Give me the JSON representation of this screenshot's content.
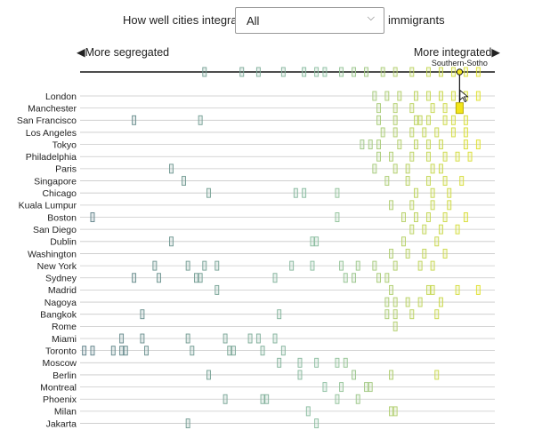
{
  "header": {
    "prefix": "How well cities integrate",
    "suffix": "immigrants",
    "select": {
      "selected": "All"
    }
  },
  "colors": {
    "segregated": "#5e7f88",
    "middle": "#8cc0a0",
    "integrated": "#e8e41e",
    "highlight": "#f2e51a"
  },
  "chart_data": {
    "type": "strip",
    "x_domain": [
      0,
      1
    ],
    "left_label": "More segregated",
    "right_label": "More integrated",
    "highlight": {
      "label": "Southern-Sotho",
      "city": "Manchester",
      "value": 0.915
    },
    "top_strip": [
      0.3,
      0.39,
      0.43,
      0.49,
      0.54,
      0.57,
      0.59,
      0.63,
      0.66,
      0.69,
      0.73,
      0.76,
      0.8,
      0.84,
      0.87,
      0.9,
      0.93,
      0.96
    ],
    "cities": [
      {
        "name": "London",
        "values": [
          0.71,
          0.74,
          0.77,
          0.81,
          0.84,
          0.87,
          0.9,
          0.93,
          0.96
        ]
      },
      {
        "name": "Manchester",
        "values": [
          0.72,
          0.76,
          0.8,
          0.85,
          0.88,
          0.915
        ]
      },
      {
        "name": "San Francisco",
        "values": [
          0.13,
          0.29,
          0.72,
          0.76,
          0.81,
          0.82,
          0.84,
          0.88,
          0.9,
          0.93
        ]
      },
      {
        "name": "Los Angeles",
        "values": [
          0.73,
          0.76,
          0.8,
          0.83,
          0.86,
          0.9,
          0.93
        ]
      },
      {
        "name": "Tokyo",
        "values": [
          0.68,
          0.7,
          0.72,
          0.77,
          0.81,
          0.84,
          0.87,
          0.93,
          0.96
        ]
      },
      {
        "name": "Philadelphia",
        "values": [
          0.72,
          0.75,
          0.8,
          0.84,
          0.88,
          0.91,
          0.94
        ]
      },
      {
        "name": "Paris",
        "values": [
          0.22,
          0.71,
          0.76,
          0.79,
          0.85,
          0.87
        ]
      },
      {
        "name": "Singapore",
        "values": [
          0.25,
          0.74,
          0.79,
          0.84,
          0.88,
          0.92
        ]
      },
      {
        "name": "Chicago",
        "values": [
          0.31,
          0.52,
          0.54,
          0.62,
          0.81,
          0.85,
          0.89
        ]
      },
      {
        "name": "Kuala Lumpur",
        "values": [
          0.75,
          0.8,
          0.85,
          0.89
        ]
      },
      {
        "name": "Boston",
        "values": [
          0.03,
          0.62,
          0.78,
          0.81,
          0.84,
          0.88,
          0.93
        ]
      },
      {
        "name": "San Diego",
        "values": [
          0.8,
          0.83,
          0.87,
          0.91
        ]
      },
      {
        "name": "Dublin",
        "values": [
          0.22,
          0.56,
          0.57,
          0.78,
          0.86
        ]
      },
      {
        "name": "Washington",
        "values": [
          0.75,
          0.79,
          0.83,
          0.88
        ]
      },
      {
        "name": "New York",
        "values": [
          0.18,
          0.26,
          0.3,
          0.33,
          0.51,
          0.56,
          0.63,
          0.67,
          0.71,
          0.76,
          0.82,
          0.85
        ]
      },
      {
        "name": "Sydney",
        "values": [
          0.13,
          0.19,
          0.28,
          0.29,
          0.47,
          0.64,
          0.66,
          0.72,
          0.74
        ]
      },
      {
        "name": "Madrid",
        "values": [
          0.33,
          0.75,
          0.84,
          0.85,
          0.91,
          0.96
        ]
      },
      {
        "name": "Nagoya",
        "values": [
          0.74,
          0.76,
          0.79,
          0.82,
          0.87
        ]
      },
      {
        "name": "Bangkok",
        "values": [
          0.15,
          0.48,
          0.74,
          0.76,
          0.8,
          0.86
        ]
      },
      {
        "name": "Rome",
        "values": [
          0.76
        ]
      },
      {
        "name": "Miami",
        "values": [
          0.1,
          0.15,
          0.26,
          0.35,
          0.41,
          0.43,
          0.47
        ]
      },
      {
        "name": "Toronto",
        "values": [
          0.01,
          0.03,
          0.08,
          0.1,
          0.11,
          0.16,
          0.27,
          0.36,
          0.37,
          0.44,
          0.49
        ]
      },
      {
        "name": "Moscow",
        "values": [
          0.48,
          0.53,
          0.57,
          0.62,
          0.64
        ]
      },
      {
        "name": "Berlin",
        "values": [
          0.31,
          0.53,
          0.66,
          0.75,
          0.86
        ]
      },
      {
        "name": "Montreal",
        "values": [
          0.59,
          0.63,
          0.69,
          0.7
        ]
      },
      {
        "name": "Phoenix",
        "values": [
          0.35,
          0.44,
          0.45,
          0.62,
          0.67
        ]
      },
      {
        "name": "Milan",
        "values": [
          0.55,
          0.75,
          0.76
        ]
      },
      {
        "name": "Jakarta",
        "values": [
          0.26,
          0.57
        ]
      }
    ]
  }
}
